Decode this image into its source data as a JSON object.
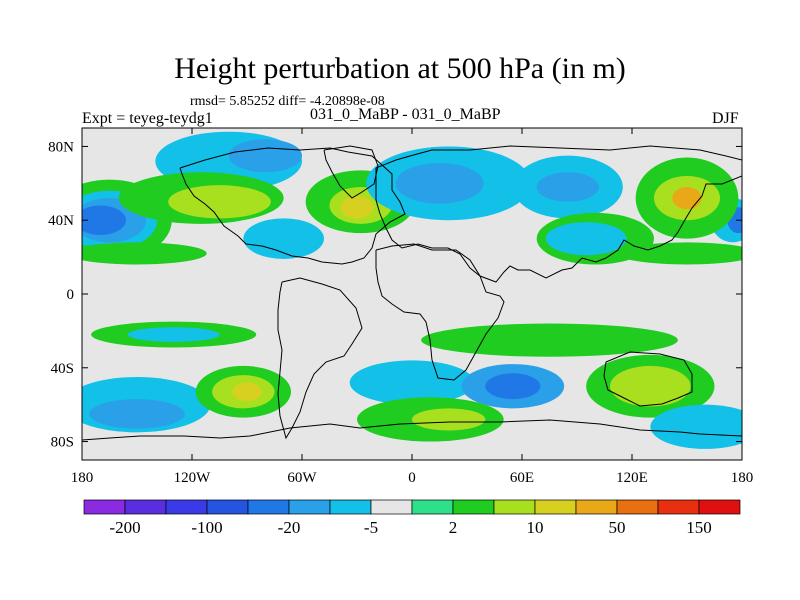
{
  "header": {
    "title": "Height perturbation at 500 hPa (in m)",
    "stats": "rmsd= 5.85252 diff= -4.20898e-08",
    "subtitle": "031_0_MaBP - 031_0_MaBP",
    "left_label": "Expt = teyeg-teydg1",
    "right_label": "DJF"
  },
  "chart_data": {
    "type": "heatmap",
    "title": "Height perturbation at 500 hPa (in m)",
    "subtitle": "031_0_MaBP - 031_0_MaBP",
    "xlabel": "",
    "ylabel": "",
    "xlim": [
      -180,
      180
    ],
    "ylim": [
      -90,
      90
    ],
    "x_ticks": [
      {
        "value": -180,
        "label": "180"
      },
      {
        "value": -120,
        "label": "120W"
      },
      {
        "value": -60,
        "label": "60W"
      },
      {
        "value": 0,
        "label": "0"
      },
      {
        "value": 60,
        "label": "60E"
      },
      {
        "value": 120,
        "label": "120E"
      },
      {
        "value": 180,
        "label": "180"
      }
    ],
    "y_ticks": [
      {
        "value": 80,
        "label": "80N"
      },
      {
        "value": 40,
        "label": "40N"
      },
      {
        "value": 0,
        "label": "0"
      },
      {
        "value": -40,
        "label": "40S"
      },
      {
        "value": -80,
        "label": "80S"
      }
    ],
    "colorbar": {
      "colors": [
        "#8a2be2",
        "#5a2ee0",
        "#3a3ae8",
        "#2454e0",
        "#1f78e6",
        "#2aa0e8",
        "#13c0e8",
        "#e6e6e6",
        "#2ee08a",
        "#20cc20",
        "#a8e020",
        "#d8d020",
        "#e8a818",
        "#e87010",
        "#e83010",
        "#e01010"
      ],
      "tick_labels": [
        {
          "index": 1,
          "label": "-200"
        },
        {
          "index": 3,
          "label": "-100"
        },
        {
          "index": 5,
          "label": "-20"
        },
        {
          "index": 7,
          "label": "-5"
        },
        {
          "index": 9,
          "label": "2"
        },
        {
          "index": 11,
          "label": "10"
        },
        {
          "index": 13,
          "label": "50"
        },
        {
          "index": 15,
          "label": "150"
        }
      ]
    },
    "regions": [
      {
        "lon": -165,
        "lat": 40,
        "rx": 34,
        "ry": 22,
        "level": 9
      },
      {
        "lon": -165,
        "lat": 40,
        "rx": 26,
        "ry": 16,
        "level": 6
      },
      {
        "lon": -165,
        "lat": 40,
        "rx": 20,
        "ry": 12,
        "level": 5
      },
      {
        "lon": -170,
        "lat": 40,
        "rx": 14,
        "ry": 8,
        "level": 4
      },
      {
        "lon": 175,
        "lat": 40,
        "rx": 12,
        "ry": 12,
        "level": 6
      },
      {
        "lon": 178,
        "lat": 40,
        "rx": 6,
        "ry": 7,
        "level": 4
      },
      {
        "lon": -100,
        "lat": 72,
        "rx": 40,
        "ry": 16,
        "level": 6
      },
      {
        "lon": -80,
        "lat": 75,
        "rx": 20,
        "ry": 9,
        "level": 5
      },
      {
        "lon": -115,
        "lat": 52,
        "rx": 45,
        "ry": 14,
        "level": 9
      },
      {
        "lon": -105,
        "lat": 50,
        "rx": 28,
        "ry": 9,
        "level": 10
      },
      {
        "lon": -28,
        "lat": 50,
        "rx": 30,
        "ry": 17,
        "level": 9
      },
      {
        "lon": -28,
        "lat": 48,
        "rx": 17,
        "ry": 10,
        "level": 10
      },
      {
        "lon": -30,
        "lat": 47,
        "rx": 9,
        "ry": 6,
        "level": 11
      },
      {
        "lon": -70,
        "lat": 30,
        "rx": 22,
        "ry": 11,
        "level": 6
      },
      {
        "lon": 20,
        "lat": 60,
        "rx": 45,
        "ry": 20,
        "level": 6
      },
      {
        "lon": 15,
        "lat": 60,
        "rx": 24,
        "ry": 11,
        "level": 5
      },
      {
        "lon": 85,
        "lat": 58,
        "rx": 30,
        "ry": 17,
        "level": 6
      },
      {
        "lon": 85,
        "lat": 58,
        "rx": 17,
        "ry": 8,
        "level": 5
      },
      {
        "lon": 100,
        "lat": 30,
        "rx": 32,
        "ry": 14,
        "level": 9
      },
      {
        "lon": 95,
        "lat": 30,
        "rx": 22,
        "ry": 9,
        "level": 6
      },
      {
        "lon": 150,
        "lat": 52,
        "rx": 28,
        "ry": 22,
        "level": 9
      },
      {
        "lon": 150,
        "lat": 52,
        "rx": 18,
        "ry": 12,
        "level": 10
      },
      {
        "lon": 150,
        "lat": 52,
        "rx": 8,
        "ry": 6,
        "level": 12
      },
      {
        "lon": 150,
        "lat": 22,
        "rx": 38,
        "ry": 6,
        "level": 9
      },
      {
        "lon": -150,
        "lat": 22,
        "rx": 38,
        "ry": 6,
        "level": 9
      },
      {
        "lon": -130,
        "lat": -22,
        "rx": 45,
        "ry": 7,
        "level": 9
      },
      {
        "lon": -130,
        "lat": -22,
        "rx": 25,
        "ry": 4,
        "level": 6
      },
      {
        "lon": 75,
        "lat": -25,
        "rx": 70,
        "ry": 9,
        "level": 9
      },
      {
        "lon": -150,
        "lat": -60,
        "rx": 40,
        "ry": 15,
        "level": 6
      },
      {
        "lon": -150,
        "lat": -65,
        "rx": 26,
        "ry": 8,
        "level": 5
      },
      {
        "lon": -92,
        "lat": -53,
        "rx": 26,
        "ry": 14,
        "level": 9
      },
      {
        "lon": -92,
        "lat": -53,
        "rx": 17,
        "ry": 9,
        "level": 10
      },
      {
        "lon": -90,
        "lat": -53,
        "rx": 8,
        "ry": 5,
        "level": 11
      },
      {
        "lon": 0,
        "lat": -48,
        "rx": 34,
        "ry": 12,
        "level": 6
      },
      {
        "lon": 55,
        "lat": -50,
        "rx": 28,
        "ry": 12,
        "level": 5
      },
      {
        "lon": 55,
        "lat": -50,
        "rx": 15,
        "ry": 7,
        "level": 4
      },
      {
        "lon": 10,
        "lat": -68,
        "rx": 40,
        "ry": 12,
        "level": 9
      },
      {
        "lon": 20,
        "lat": -68,
        "rx": 20,
        "ry": 6,
        "level": 10
      },
      {
        "lon": 130,
        "lat": -50,
        "rx": 35,
        "ry": 17,
        "level": 9
      },
      {
        "lon": 130,
        "lat": -50,
        "rx": 22,
        "ry": 11,
        "level": 10
      },
      {
        "lon": 160,
        "lat": -72,
        "rx": 30,
        "ry": 12,
        "level": 6
      }
    ]
  }
}
